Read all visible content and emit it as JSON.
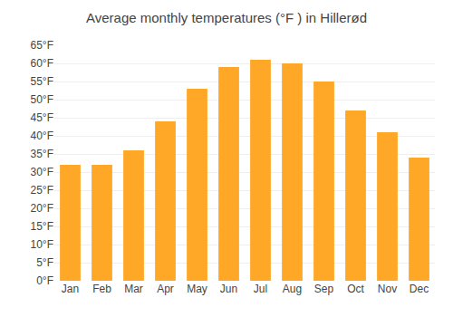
{
  "chart_data": {
    "type": "bar",
    "title": "Average monthly temperatures (°F ) in Hillerød",
    "categories": [
      "Jan",
      "Feb",
      "Mar",
      "Apr",
      "May",
      "Jun",
      "Jul",
      "Aug",
      "Sep",
      "Oct",
      "Nov",
      "Dec"
    ],
    "values": [
      32,
      32,
      36,
      44,
      53,
      59,
      61,
      60,
      55,
      47,
      41,
      34
    ],
    "color": "#FFA726",
    "ylim": [
      0,
      65
    ],
    "yticks": [
      {
        "value": 0,
        "label": "0°F"
      },
      {
        "value": 5,
        "label": "5°F"
      },
      {
        "value": 10,
        "label": "10°F"
      },
      {
        "value": 15,
        "label": "15°F"
      },
      {
        "value": 20,
        "label": "20°F"
      },
      {
        "value": 25,
        "label": "25°F"
      },
      {
        "value": 30,
        "label": "30°F"
      },
      {
        "value": 35,
        "label": "35°F"
      },
      {
        "value": 40,
        "label": "40°F"
      },
      {
        "value": 45,
        "label": "45°F"
      },
      {
        "value": 50,
        "label": "50°F"
      },
      {
        "value": 55,
        "label": "55°F"
      },
      {
        "value": 60,
        "label": "60°F"
      },
      {
        "value": 65,
        "label": "65°F"
      }
    ],
    "grid": true
  }
}
